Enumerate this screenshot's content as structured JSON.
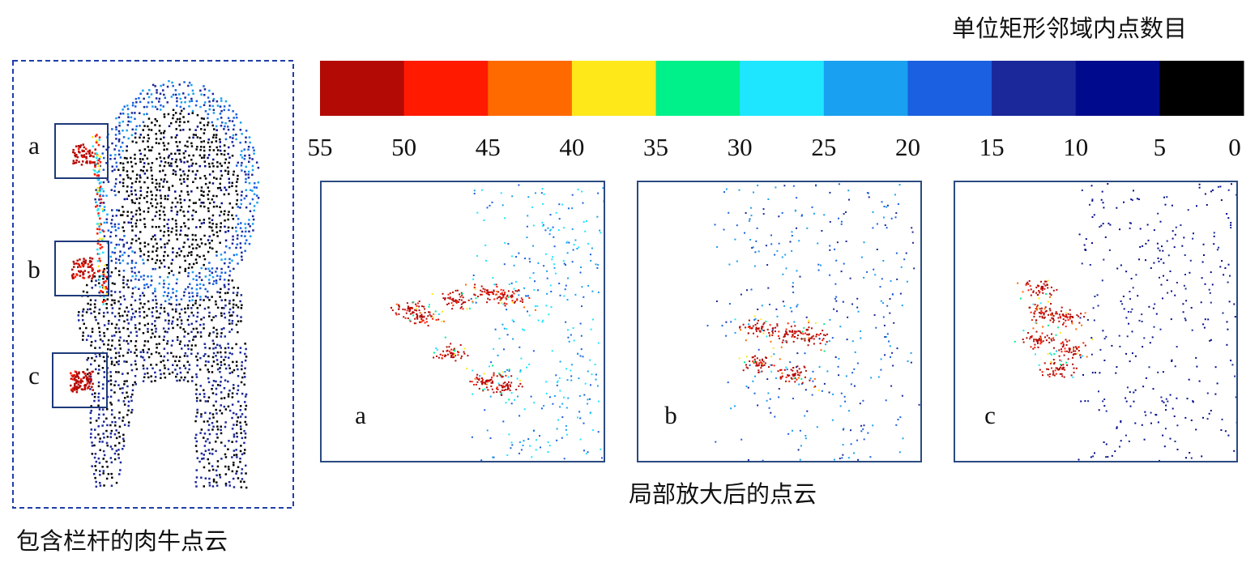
{
  "colorbar": {
    "title": "单位矩形邻域内点数目",
    "colors": [
      "#b30a06",
      "#ff1a00",
      "#ff6a00",
      "#ffe81a",
      "#00f08a",
      "#1ee6ff",
      "#1aa0f0",
      "#1a60e0",
      "#1a2899",
      "#000a8c",
      "#000000"
    ],
    "ticks": [
      55,
      50,
      45,
      40,
      35,
      30,
      25,
      20,
      15,
      10,
      5,
      0
    ]
  },
  "overview": {
    "caption": "包含栏杆的肉牛点云",
    "regions": [
      {
        "label": "a"
      },
      {
        "label": "b"
      },
      {
        "label": "c"
      }
    ]
  },
  "zoom": {
    "caption": "局部放大后的点云",
    "panels": [
      {
        "label": "a"
      },
      {
        "label": "b"
      },
      {
        "label": "c"
      }
    ]
  }
}
